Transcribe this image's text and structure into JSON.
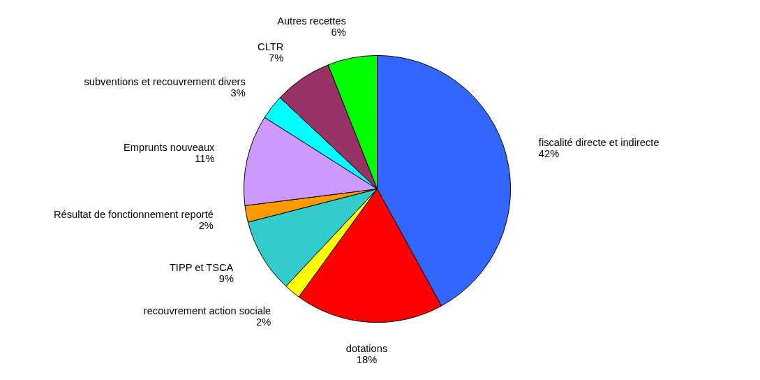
{
  "chart_data": {
    "type": "pie",
    "categories": [
      "fiscalité directe et indirecte",
      "dotations",
      "recouvrement action sociale",
      "TIPP et TSCA",
      "Résultat de fonctionnement reporté",
      "Emprunts nouveaux",
      "subventions et recouvrement divers",
      "CLTR",
      "Autres recettes"
    ],
    "values": [
      42,
      18,
      2,
      9,
      2,
      11,
      3,
      7,
      6
    ],
    "value_labels": [
      "42%",
      "18%",
      "2%",
      "9%",
      "2%",
      "11%",
      "3%",
      "7%",
      "6%"
    ],
    "colors": [
      "#3366ff",
      "#ff0000",
      "#ffff00",
      "#33cccc",
      "#ff9900",
      "#cc99ff",
      "#00ffff",
      "#993366",
      "#00ff00"
    ]
  }
}
